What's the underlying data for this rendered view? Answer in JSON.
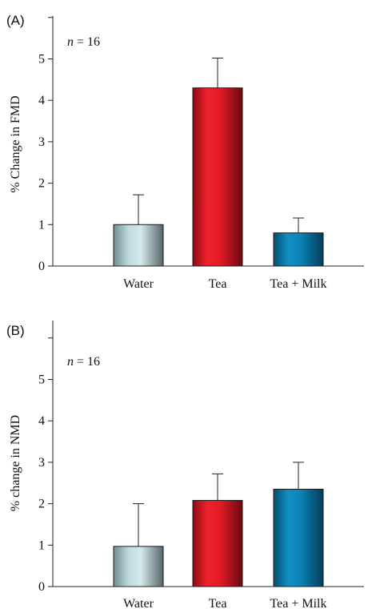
{
  "chart_data": [
    {
      "type": "bar",
      "panel_label": "(A)",
      "annotation": {
        "italic": "n",
        "rest": " = 16"
      },
      "categories": [
        "Water",
        "Tea",
        "Tea + Milk"
      ],
      "values": [
        1.0,
        4.3,
        0.8
      ],
      "error_upper": [
        1.72,
        5.02,
        1.16
      ],
      "colors": [
        "#a9c6c8",
        "#d81420",
        "#0a74a2"
      ],
      "ylabel": "% Change in FMD",
      "ylim": [
        0,
        6
      ],
      "yticks": [
        0,
        1,
        2,
        3,
        4,
        5
      ],
      "grid": false
    },
    {
      "type": "bar",
      "panel_label": "(B)",
      "annotation": {
        "italic": "n",
        "rest": " = 16"
      },
      "categories": [
        "Water",
        "Tea",
        "Tea + Milk"
      ],
      "values": [
        0.97,
        2.08,
        2.35
      ],
      "error_upper": [
        2.0,
        2.72,
        3.0
      ],
      "colors": [
        "#a9c6c8",
        "#d81420",
        "#0a74a2"
      ],
      "ylabel": "% change in NMD",
      "ylim": [
        0,
        6
      ],
      "yticks": [
        0,
        1,
        2,
        3,
        4,
        5
      ],
      "grid": false
    }
  ]
}
